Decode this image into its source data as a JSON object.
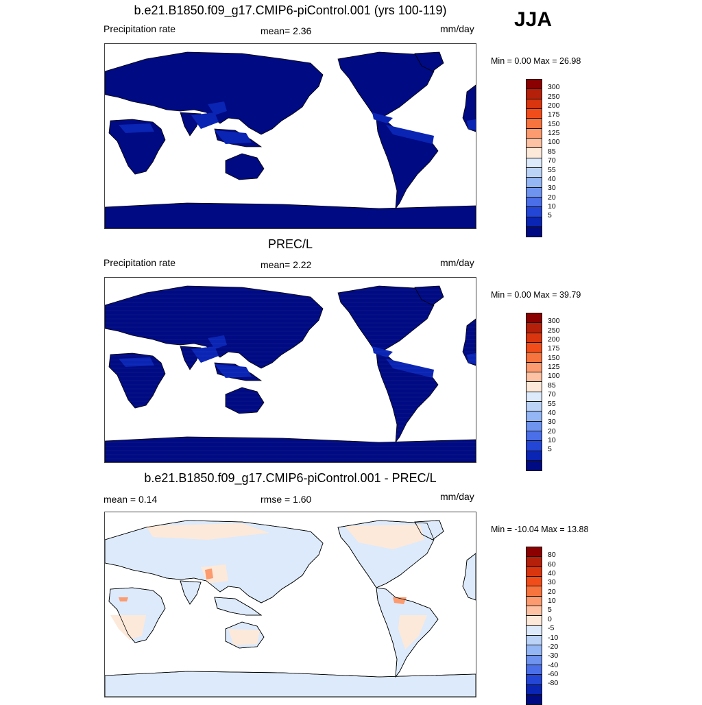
{
  "season": "JJA",
  "panels": [
    {
      "id": "model",
      "title": "b.e21.B1850.f09_g17.CMIP6-piControl.001 (yrs 100-119)",
      "left_label": "Precipitation rate",
      "center_label": "mean=   2.36",
      "right_label": "mm/day",
      "minmax": "Min =    0.00 Max =  26.98",
      "fill": "full"
    },
    {
      "id": "obs",
      "title": "PREC/L",
      "left_label": "Precipitation rate",
      "center_label": "mean=   2.22",
      "right_label": "mm/day",
      "minmax": "Min =    0.00 Max =  39.79",
      "fill": "blocky"
    },
    {
      "id": "diff",
      "title": "b.e21.B1850.f09_g17.CMIP6-piControl.001 - PREC/L",
      "left_label": "mean =   0.14",
      "center_label": "rmse =   1.60",
      "right_label": "mm/day",
      "minmax": "Min = -10.04 Max =  13.88",
      "fill": "diff"
    }
  ],
  "colorbars": {
    "precip": {
      "labels": [
        "300",
        "250",
        "200",
        "175",
        "150",
        "125",
        "100",
        "85",
        "70",
        "55",
        "40",
        "30",
        "20",
        "10",
        "5"
      ],
      "colors": [
        "#8b0000",
        "#b5200b",
        "#d9360f",
        "#f04d1a",
        "#f7743f",
        "#fb9b6f",
        "#fdc2a3",
        "#fde9d9",
        "#dceafb",
        "#bcd3f8",
        "#94b6f5",
        "#6f94f0",
        "#4a6fe8",
        "#2446d6",
        "#0a24b4",
        "#000a82"
      ]
    },
    "diff": {
      "labels": [
        "80",
        "60",
        "40",
        "30",
        "20",
        "10",
        "5",
        "0",
        "-5",
        "-10",
        "-20",
        "-30",
        "-40",
        "-60",
        "-80"
      ],
      "colors": [
        "#8b0000",
        "#b5200b",
        "#d9360f",
        "#f04d1a",
        "#f7743f",
        "#fb9b6f",
        "#fdc2a3",
        "#fde9d9",
        "#dceafb",
        "#bcd3f8",
        "#94b6f5",
        "#6f94f0",
        "#4a6fe8",
        "#2446d6",
        "#0a24b4",
        "#000a82"
      ]
    }
  },
  "colors": {
    "land_base": "#000a82",
    "wet": "#0a24b4",
    "wetter": "#2446d6",
    "wettest": "#4a6fe8",
    "diff_dry": "#dceafb",
    "diff_wet": "#fde9d9",
    "diff_wetter": "#fdc2a3",
    "diff_wettest": "#fb9b6f",
    "coast": "#000000"
  }
}
